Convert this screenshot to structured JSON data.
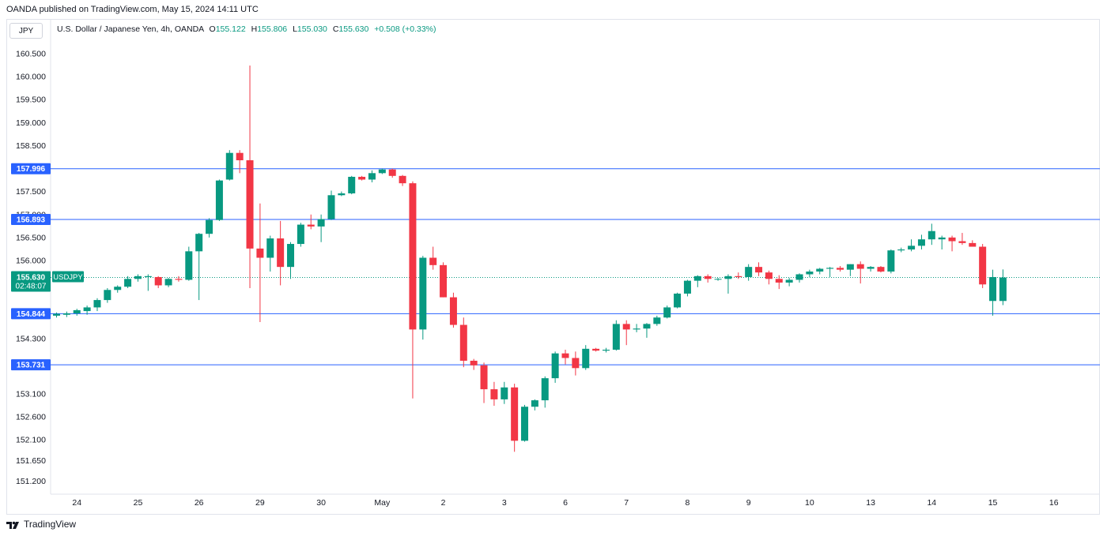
{
  "header": {
    "published": "OANDA published on TradingView.com, May 15, 2024 14:11 UTC"
  },
  "currency_label": "JPY",
  "legend": {
    "title": "U.S. Dollar / Japanese Yen, 4h, OANDA",
    "open_label": "O",
    "open": "155.122",
    "high_label": "H",
    "high": "155.806",
    "low_label": "L",
    "low": "155.030",
    "close_label": "C",
    "close": "155.630",
    "change": "+0.508 (+0.33%)"
  },
  "price_tag": {
    "price": "155.630",
    "countdown": "02:48:07",
    "symbol": "USDJPY"
  },
  "footer": {
    "brand": "TradingView"
  },
  "colors": {
    "up": "#089981",
    "down": "#f23645",
    "level": "#2962ff",
    "grid": "#f0f3fa"
  },
  "chart_data": {
    "type": "candlestick",
    "symbol": "USDJPY",
    "timeframe": "4h",
    "y_ticks": [
      "160.500",
      "160.000",
      "159.500",
      "159.000",
      "158.500",
      "157.500",
      "157.000",
      "156.500",
      "156.000",
      "154.300",
      "153.100",
      "152.600",
      "152.100",
      "151.650",
      "151.200"
    ],
    "x_ticks": [
      {
        "label": "24",
        "i": 2
      },
      {
        "label": "25",
        "i": 8
      },
      {
        "label": "26",
        "i": 14
      },
      {
        "label": "29",
        "i": 20
      },
      {
        "label": "30",
        "i": 26
      },
      {
        "label": "May",
        "i": 32
      },
      {
        "label": "2",
        "i": 38
      },
      {
        "label": "3",
        "i": 44
      },
      {
        "label": "6",
        "i": 50
      },
      {
        "label": "7",
        "i": 56
      },
      {
        "label": "8",
        "i": 62
      },
      {
        "label": "9",
        "i": 68
      },
      {
        "label": "10",
        "i": 74
      },
      {
        "label": "13",
        "i": 80
      },
      {
        "label": "14",
        "i": 86
      },
      {
        "label": "15",
        "i": 92
      },
      {
        "label": "16",
        "i": 98
      }
    ],
    "levels": [
      {
        "value": 157.996,
        "label": "157.996"
      },
      {
        "value": 156.893,
        "label": "156.893"
      },
      {
        "value": 154.844,
        "label": "154.844"
      },
      {
        "value": 153.731,
        "label": "153.731"
      }
    ],
    "current_price": 155.63,
    "ohlc": [
      [
        154.8,
        154.87,
        154.76,
        154.84
      ],
      [
        154.82,
        154.89,
        154.77,
        154.85
      ],
      [
        154.85,
        154.95,
        154.8,
        154.92
      ],
      [
        154.9,
        155.02,
        154.82,
        154.98
      ],
      [
        154.98,
        155.18,
        154.9,
        155.14
      ],
      [
        155.14,
        155.4,
        155.08,
        155.36
      ],
      [
        155.36,
        155.46,
        155.3,
        155.43
      ],
      [
        155.43,
        155.66,
        155.4,
        155.6
      ],
      [
        155.6,
        155.7,
        155.54,
        155.66
      ],
      [
        155.64,
        155.7,
        155.34,
        155.66
      ],
      [
        155.64,
        155.66,
        155.4,
        155.46
      ],
      [
        155.46,
        155.62,
        155.42,
        155.6
      ],
      [
        155.6,
        155.66,
        155.54,
        155.58
      ],
      [
        155.58,
        156.3,
        155.56,
        156.2
      ],
      [
        156.2,
        156.6,
        155.14,
        156.58
      ],
      [
        156.58,
        156.92,
        156.5,
        156.88
      ],
      [
        156.88,
        157.76,
        156.86,
        157.74
      ],
      [
        157.76,
        158.4,
        157.74,
        158.34
      ],
      [
        158.34,
        158.4,
        157.9,
        158.18
      ],
      [
        158.18,
        160.24,
        155.4,
        156.26
      ],
      [
        156.26,
        157.24,
        154.66,
        156.06
      ],
      [
        156.06,
        156.54,
        155.76,
        156.48
      ],
      [
        156.48,
        156.86,
        155.46,
        155.86
      ],
      [
        155.86,
        156.4,
        155.6,
        156.36
      ],
      [
        156.36,
        156.82,
        156.3,
        156.78
      ],
      [
        156.78,
        157.0,
        156.68,
        156.74
      ],
      [
        156.74,
        157.0,
        156.4,
        156.9
      ],
      [
        156.9,
        157.52,
        156.88,
        157.42
      ],
      [
        157.42,
        157.5,
        157.4,
        157.46
      ],
      [
        157.46,
        157.84,
        157.44,
        157.82
      ],
      [
        157.82,
        157.84,
        157.74,
        157.76
      ],
      [
        157.76,
        157.96,
        157.7,
        157.9
      ],
      [
        157.9,
        158.0,
        157.88,
        157.98
      ],
      [
        157.98,
        158.0,
        157.8,
        157.84
      ],
      [
        157.84,
        157.86,
        157.62,
        157.68
      ],
      [
        157.68,
        157.72,
        153.0,
        154.5
      ],
      [
        154.5,
        156.1,
        154.28,
        156.06
      ],
      [
        156.06,
        156.3,
        155.8,
        155.9
      ],
      [
        155.9,
        155.96,
        155.2,
        155.2
      ],
      [
        155.2,
        155.3,
        154.54,
        154.6
      ],
      [
        154.6,
        154.76,
        153.68,
        153.82
      ],
      [
        153.82,
        153.86,
        153.62,
        153.72
      ],
      [
        153.72,
        153.78,
        152.9,
        153.2
      ],
      [
        153.2,
        153.36,
        152.84,
        152.98
      ],
      [
        152.98,
        153.36,
        152.88,
        153.24
      ],
      [
        153.24,
        153.32,
        151.84,
        152.08
      ],
      [
        152.08,
        152.86,
        152.06,
        152.82
      ],
      [
        152.82,
        152.98,
        152.74,
        152.96
      ],
      [
        152.96,
        153.48,
        152.8,
        153.44
      ],
      [
        153.44,
        154.02,
        153.34,
        153.98
      ],
      [
        153.98,
        154.06,
        153.74,
        153.88
      ],
      [
        153.88,
        154.02,
        153.5,
        153.66
      ],
      [
        153.66,
        154.16,
        153.62,
        154.08
      ],
      [
        154.08,
        154.1,
        154.02,
        154.04
      ],
      [
        154.04,
        154.1,
        154.0,
        154.06
      ],
      [
        154.06,
        154.7,
        154.04,
        154.62
      ],
      [
        154.62,
        154.7,
        154.16,
        154.5
      ],
      [
        154.5,
        154.62,
        154.44,
        154.52
      ],
      [
        154.52,
        154.64,
        154.32,
        154.62
      ],
      [
        154.62,
        154.8,
        154.58,
        154.76
      ],
      [
        154.76,
        155.02,
        154.74,
        154.98
      ],
      [
        154.98,
        155.3,
        154.96,
        155.28
      ],
      [
        155.28,
        155.58,
        155.22,
        155.56
      ],
      [
        155.56,
        155.68,
        155.42,
        155.66
      ],
      [
        155.66,
        155.7,
        155.52,
        155.6
      ],
      [
        155.6,
        155.62,
        155.56,
        155.6
      ],
      [
        155.6,
        155.7,
        155.28,
        155.66
      ],
      [
        155.66,
        155.74,
        155.6,
        155.64
      ],
      [
        155.64,
        155.92,
        155.56,
        155.86
      ],
      [
        155.86,
        155.96,
        155.66,
        155.74
      ],
      [
        155.74,
        155.78,
        155.48,
        155.6
      ],
      [
        155.6,
        155.68,
        155.38,
        155.52
      ],
      [
        155.52,
        155.62,
        155.44,
        155.58
      ],
      [
        155.58,
        155.72,
        155.52,
        155.7
      ],
      [
        155.7,
        155.8,
        155.64,
        155.76
      ],
      [
        155.76,
        155.84,
        155.7,
        155.82
      ],
      [
        155.82,
        155.86,
        155.64,
        155.84
      ],
      [
        155.84,
        155.88,
        155.76,
        155.8
      ],
      [
        155.8,
        155.92,
        155.66,
        155.92
      ],
      [
        155.92,
        155.98,
        155.5,
        155.82
      ],
      [
        155.82,
        155.88,
        155.76,
        155.86
      ],
      [
        155.86,
        155.88,
        155.74,
        155.76
      ],
      [
        155.76,
        156.24,
        155.72,
        156.22
      ],
      [
        156.22,
        156.28,
        156.18,
        156.24
      ],
      [
        156.24,
        156.46,
        156.2,
        156.32
      ],
      [
        156.32,
        156.56,
        156.24,
        156.46
      ],
      [
        156.46,
        156.8,
        156.34,
        156.64
      ],
      [
        156.46,
        156.54,
        156.24,
        156.5
      ],
      [
        156.5,
        156.54,
        156.2,
        156.42
      ],
      [
        156.42,
        156.6,
        156.34,
        156.38
      ],
      [
        156.38,
        156.44,
        156.3,
        156.3
      ],
      [
        156.3,
        156.36,
        155.4,
        155.48
      ],
      [
        155.12,
        155.8,
        154.8,
        155.64
      ],
      [
        155.12,
        155.806,
        155.03,
        155.63
      ]
    ]
  }
}
